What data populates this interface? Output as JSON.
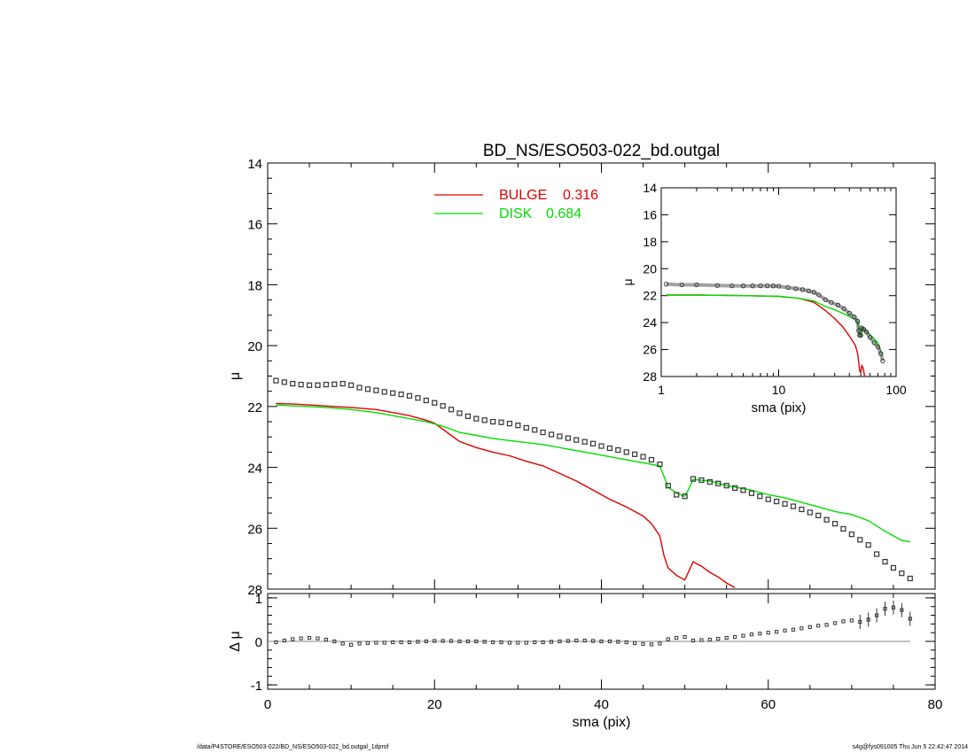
{
  "chart_data": [
    {
      "id": "main",
      "type": "line",
      "title": "BD_NS/ESO503-022_bd.outgal",
      "xlabel": "",
      "ylabel": "μ",
      "xlim": [
        0,
        80
      ],
      "ylim": [
        28,
        14
      ],
      "y_ticks": [
        14,
        16,
        18,
        20,
        22,
        24,
        26,
        28
      ],
      "legend_placement": "top-center",
      "legend": [
        {
          "name": "BULGE",
          "value": "0.316",
          "color": "#e00000"
        },
        {
          "name": "DISK",
          "value": "0.684",
          "color": "#00dd00"
        }
      ],
      "data_series": {
        "name": "data",
        "marker": "square",
        "x": [
          1,
          2,
          3,
          4,
          5,
          6,
          7,
          8,
          9,
          10,
          11,
          12,
          13,
          14,
          15,
          16,
          17,
          18,
          19,
          20,
          21,
          22,
          23,
          24,
          25,
          26,
          27,
          28,
          29,
          30,
          31,
          32,
          33,
          34,
          35,
          36,
          37,
          38,
          39,
          40,
          41,
          42,
          43,
          44,
          45,
          46,
          47,
          48,
          49,
          50,
          51,
          52,
          53,
          54,
          55,
          56,
          57,
          58,
          59,
          60,
          61,
          62,
          63,
          64,
          65,
          66,
          67,
          68,
          69,
          70,
          71,
          72,
          73,
          74,
          75,
          76,
          77
        ],
        "y": [
          21.15,
          21.2,
          21.25,
          21.28,
          21.3,
          21.3,
          21.28,
          21.27,
          21.25,
          21.3,
          21.38,
          21.43,
          21.47,
          21.52,
          21.56,
          21.6,
          21.65,
          21.72,
          21.8,
          21.88,
          21.98,
          22.1,
          22.22,
          22.32,
          22.4,
          22.45,
          22.5,
          22.52,
          22.56,
          22.62,
          22.7,
          22.77,
          22.85,
          22.92,
          22.98,
          23.04,
          23.1,
          23.16,
          23.22,
          23.3,
          23.37,
          23.43,
          23.5,
          23.57,
          23.65,
          23.75,
          23.9,
          24.6,
          24.9,
          24.95,
          24.38,
          24.42,
          24.48,
          24.53,
          24.6,
          24.68,
          24.75,
          24.85,
          24.95,
          25.05,
          25.12,
          25.2,
          25.28,
          25.38,
          25.48,
          25.58,
          25.72,
          25.85,
          26.02,
          26.2,
          26.38,
          26.55,
          26.85,
          27.1,
          27.3,
          27.48,
          27.65
        ]
      },
      "series": [
        {
          "name": "BULGE",
          "color": "#e00000",
          "x": [
            1,
            3,
            5,
            8,
            10,
            13,
            15,
            17,
            19,
            20,
            21,
            22,
            23,
            25,
            27,
            29,
            31,
            33,
            35,
            37,
            39,
            41,
            43,
            45,
            46,
            47,
            47.5,
            48,
            49,
            50,
            50.5,
            51,
            52,
            53,
            54,
            55,
            56
          ],
          "y": [
            21.9,
            21.92,
            21.95,
            22.0,
            22.03,
            22.1,
            22.2,
            22.3,
            22.45,
            22.55,
            22.75,
            22.95,
            23.15,
            23.35,
            23.5,
            23.62,
            23.8,
            23.95,
            24.2,
            24.45,
            24.75,
            25.05,
            25.3,
            25.6,
            25.85,
            26.25,
            26.9,
            27.3,
            27.55,
            27.7,
            27.4,
            27.1,
            27.25,
            27.45,
            27.6,
            27.8,
            27.95
          ]
        },
        {
          "name": "DISK",
          "color": "#00dd00",
          "x": [
            1,
            3,
            5,
            8,
            10,
            13,
            15,
            17,
            19,
            21,
            22,
            23,
            25,
            27,
            30,
            33,
            36,
            39,
            42,
            45,
            47,
            47.5,
            48,
            49,
            50,
            50.5,
            51,
            53,
            55,
            58,
            60,
            62,
            64,
            66,
            68,
            70,
            72,
            74,
            76,
            77
          ],
          "y": [
            21.95,
            21.98,
            22.0,
            22.05,
            22.1,
            22.2,
            22.3,
            22.4,
            22.5,
            22.65,
            22.75,
            22.85,
            22.95,
            23.05,
            23.15,
            23.25,
            23.4,
            23.55,
            23.7,
            23.85,
            23.95,
            24.3,
            24.65,
            24.85,
            24.95,
            24.7,
            24.4,
            24.45,
            24.6,
            24.75,
            24.9,
            25.0,
            25.15,
            25.3,
            25.45,
            25.55,
            25.75,
            26.1,
            26.4,
            26.45
          ]
        }
      ]
    },
    {
      "id": "inset",
      "type": "line",
      "xlabel": "sma (pix)",
      "ylabel": "μ",
      "xscale": "log",
      "xlim": [
        1,
        100
      ],
      "ylim": [
        28,
        14
      ],
      "x_ticks": [
        1,
        10,
        100
      ],
      "y_ticks": [
        14,
        16,
        18,
        20,
        22,
        24,
        26,
        28
      ],
      "data_series": {
        "name": "data",
        "marker": "circle",
        "x": [
          1.1,
          1.5,
          2,
          3,
          4,
          5,
          6,
          7,
          8,
          9,
          10,
          12,
          14,
          16,
          18,
          20,
          22,
          25,
          28,
          32,
          36,
          40,
          44,
          47,
          48,
          49,
          50,
          51,
          53,
          56,
          60,
          65,
          70,
          74,
          77
        ],
        "y": [
          21.15,
          21.2,
          21.2,
          21.25,
          21.27,
          21.28,
          21.28,
          21.27,
          21.27,
          21.28,
          21.3,
          21.4,
          21.48,
          21.55,
          21.65,
          21.75,
          21.95,
          22.3,
          22.5,
          22.7,
          22.98,
          23.3,
          23.57,
          23.9,
          24.6,
          24.95,
          24.95,
          24.4,
          24.5,
          24.7,
          25.1,
          25.5,
          25.8,
          26.3,
          26.85
        ]
      },
      "series": [
        {
          "name": "BULGE",
          "color": "#e00000",
          "x": [
            1.1,
            2,
            5,
            10,
            15,
            20,
            25,
            30,
            35,
            40,
            45,
            47,
            49,
            50,
            51,
            52,
            53,
            54
          ],
          "y": [
            21.95,
            21.95,
            22.0,
            22.05,
            22.2,
            22.5,
            23.1,
            23.7,
            24.3,
            25.0,
            25.7,
            26.3,
            27.6,
            27.7,
            27.2,
            27.3,
            27.6,
            28.0
          ]
        },
        {
          "name": "DISK",
          "color": "#00dd00",
          "x": [
            1.1,
            2,
            5,
            10,
            15,
            20,
            25,
            30,
            35,
            40,
            45,
            47,
            48,
            49,
            50,
            51,
            55,
            60,
            65,
            70,
            75,
            77
          ],
          "y": [
            21.95,
            21.95,
            22.0,
            22.05,
            22.2,
            22.4,
            22.8,
            23.05,
            23.3,
            23.55,
            23.8,
            23.95,
            24.6,
            24.9,
            24.95,
            24.4,
            24.6,
            24.9,
            25.2,
            25.5,
            26.2,
            26.45
          ]
        }
      ]
    },
    {
      "id": "residual",
      "type": "scatter",
      "xlabel": "sma (pix)",
      "ylabel": "Δ μ",
      "xlim": [
        0,
        80
      ],
      "ylim": [
        -1.1,
        1.1
      ],
      "x_ticks": [
        0,
        20,
        40,
        60,
        80
      ],
      "y_ticks": [
        1,
        0,
        -1
      ],
      "baseline": 0,
      "x": [
        1,
        2,
        3,
        4,
        5,
        6,
        7,
        8,
        9,
        10,
        11,
        12,
        13,
        14,
        15,
        16,
        17,
        18,
        19,
        20,
        21,
        22,
        23,
        24,
        25,
        26,
        27,
        28,
        29,
        30,
        31,
        32,
        33,
        34,
        35,
        36,
        37,
        38,
        39,
        40,
        41,
        42,
        43,
        44,
        45,
        46,
        47,
        48,
        49,
        50,
        51,
        52,
        53,
        54,
        55,
        56,
        57,
        58,
        59,
        60,
        61,
        62,
        63,
        64,
        65,
        66,
        67,
        68,
        69,
        70,
        71,
        72,
        73,
        74,
        75,
        76,
        77
      ],
      "y": [
        -0.02,
        0.02,
        0.05,
        0.07,
        0.08,
        0.07,
        0.04,
        0.0,
        -0.05,
        -0.08,
        -0.05,
        -0.04,
        -0.03,
        -0.03,
        -0.02,
        -0.02,
        -0.02,
        -0.01,
        0.0,
        0.01,
        0.01,
        0.01,
        0.0,
        0.0,
        0.0,
        -0.01,
        -0.02,
        -0.02,
        -0.03,
        -0.03,
        -0.03,
        -0.02,
        -0.02,
        -0.01,
        0.0,
        0.01,
        0.02,
        0.02,
        0.01,
        0.0,
        0.0,
        -0.01,
        -0.02,
        -0.04,
        -0.06,
        -0.07,
        -0.05,
        0.05,
        0.08,
        0.1,
        0.02,
        0.03,
        0.04,
        0.06,
        0.08,
        0.1,
        0.13,
        0.16,
        0.18,
        0.2,
        0.22,
        0.25,
        0.27,
        0.3,
        0.33,
        0.36,
        0.38,
        0.42,
        0.46,
        0.48,
        0.45,
        0.5,
        0.6,
        0.75,
        0.78,
        0.72,
        0.52
      ]
    }
  ],
  "footer": {
    "left": "/data/P4STORE/ESO503-022/BD_NS/ESO503-022_bd.outgal_1dprof",
    "right": "s4g@fys091005  Thu Jun  5 22:42:47 2014"
  }
}
